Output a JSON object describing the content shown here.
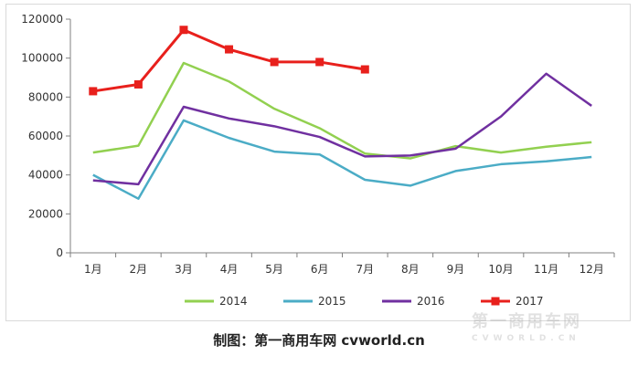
{
  "chart_data": {
    "type": "line",
    "categories": [
      "1月",
      "2月",
      "3月",
      "4月",
      "5月",
      "6月",
      "7月",
      "8月",
      "9月",
      "10月",
      "11月",
      "12月"
    ],
    "ylim": [
      0,
      120000
    ],
    "yticks": [
      0,
      20000,
      40000,
      60000,
      80000,
      100000,
      120000
    ],
    "grid": false,
    "legend_position": "bottom",
    "series": [
      {
        "name": "2014",
        "color": "#92d050",
        "marker": "none",
        "values": [
          51500,
          55000,
          97500,
          88000,
          74000,
          64000,
          51000,
          48500,
          54800,
          51500,
          54500,
          56800
        ]
      },
      {
        "name": "2015",
        "color": "#4bacc6",
        "marker": "none",
        "values": [
          40000,
          27800,
          68000,
          59000,
          52000,
          50500,
          37500,
          34500,
          42000,
          45500,
          47000,
          49200
        ]
      },
      {
        "name": "2016",
        "color": "#7030a0",
        "marker": "none",
        "values": [
          37200,
          35200,
          75000,
          69000,
          65000,
          59500,
          49500,
          50000,
          53500,
          70000,
          92000,
          75500
        ]
      },
      {
        "name": "2017",
        "color": "#e8201c",
        "marker": "square",
        "values": [
          83000,
          86500,
          114500,
          104500,
          98000,
          98000,
          94200,
          null,
          null,
          null,
          null,
          null
        ]
      }
    ]
  },
  "caption": "制图：第一商用车网 cvworld.cn",
  "watermark": {
    "main": "第一商用车网",
    "sub": "CVWORLD.CN"
  }
}
